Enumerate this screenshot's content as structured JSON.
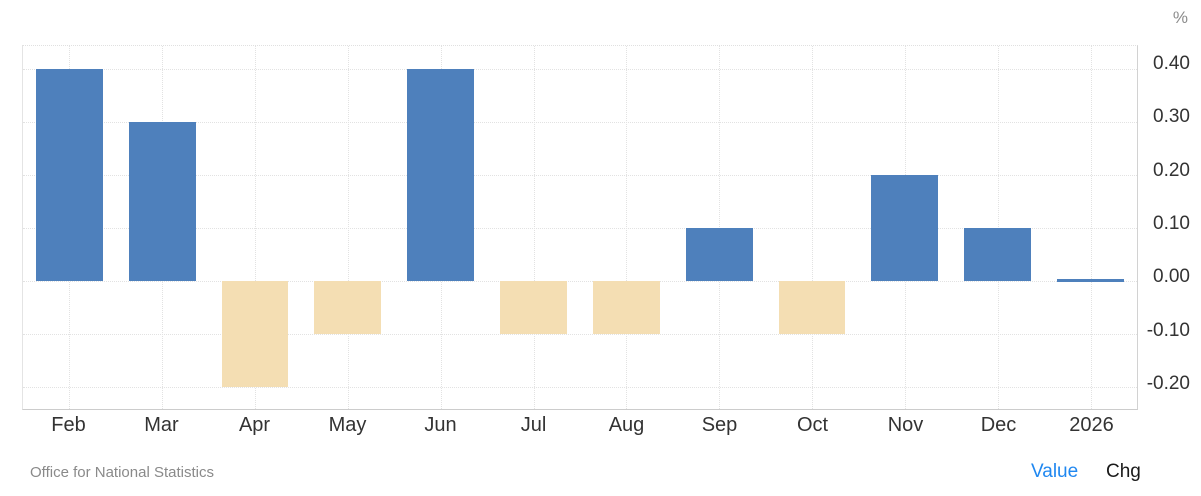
{
  "header": {
    "unit_label": "%"
  },
  "footer": {
    "source": "Office for National Statistics",
    "value_toggle": "Value",
    "chg_toggle": "Chg"
  },
  "colors": {
    "positive_bar": "#4e80bc",
    "negative_bar": "#f4deb3",
    "value_link": "#1f87f0",
    "gridline": "#e2e2e2",
    "axis_text": "#333333",
    "muted_text": "#8a8a8a"
  },
  "chart_data": {
    "type": "bar",
    "categories": [
      "Feb",
      "Mar",
      "Apr",
      "May",
      "Jun",
      "Jul",
      "Aug",
      "Sep",
      "Oct",
      "Nov",
      "Dec",
      "2026"
    ],
    "values": [
      0.4,
      0.3,
      -0.2,
      -0.1,
      0.4,
      -0.1,
      -0.1,
      0.1,
      -0.1,
      0.2,
      0.1,
      0.0
    ],
    "title": "",
    "xlabel": "",
    "ylabel": "%",
    "ylim": [
      -0.2405,
      0.4425
    ],
    "yticks": [
      0.4,
      0.3,
      0.2,
      0.1,
      0.0,
      -0.1,
      -0.2
    ],
    "ytick_labels": [
      "0.40",
      "0.30",
      "0.20",
      "0.10",
      "0.00",
      "-0.10",
      "-0.20"
    ],
    "grid": true,
    "legend": false,
    "positive_color": "#4e80bc",
    "negative_color": "#f4deb3"
  }
}
